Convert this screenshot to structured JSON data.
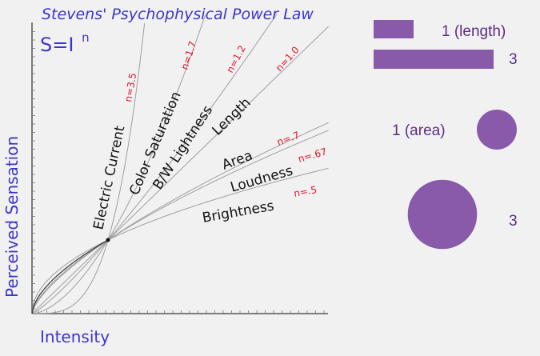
{
  "colors": {
    "background": "#f1f1f1",
    "title_blue": "#3c36c8",
    "label_black": "#111111",
    "exponent_red": "#e0162b",
    "purple": "#8a5aaa",
    "curve_gray": "#9e9e9e",
    "axis_dark": "#555555"
  },
  "chart_data": {
    "type": "line",
    "title": "Stevens' Psychophysical Power Law",
    "formula_base": "S=I",
    "formula_exponent": "n",
    "xlabel": "Intensity",
    "ylabel": "Perceived Sensation",
    "series": [
      {
        "name": "Electric Current",
        "exponent": 3.5,
        "exponent_label": "n=3.5"
      },
      {
        "name": "Color Saturation",
        "exponent": 1.7,
        "exponent_label": "n=1.7"
      },
      {
        "name": "B/W Lightness",
        "exponent": 1.2,
        "exponent_label": "n=1.2"
      },
      {
        "name": "Length",
        "exponent": 1.0,
        "exponent_label": "n=1.0"
      },
      {
        "name": "Area",
        "exponent": 0.7,
        "exponent_label": "n=.7"
      },
      {
        "name": "Loudness",
        "exponent": 0.67,
        "exponent_label": "n=.67"
      },
      {
        "name": "Brightness",
        "exponent": 0.5,
        "exponent_label": "n=.5"
      }
    ]
  },
  "illustration": {
    "length_comparison": [
      {
        "label": "1 (length)",
        "value": 1
      },
      {
        "label": "3",
        "value": 3
      }
    ],
    "area_comparison": [
      {
        "label": "1 (area)",
        "value": 1
      },
      {
        "label": "3",
        "value": 3
      }
    ]
  }
}
